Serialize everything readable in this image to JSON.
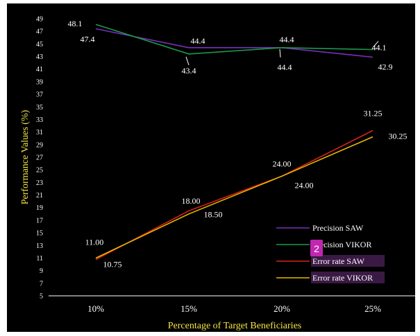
{
  "chart_data": {
    "type": "line",
    "xlabel": "Percentage of Target Beneficiaries",
    "ylabel": "Performance Values (%)",
    "categories": [
      "10%",
      "15%",
      "20%",
      "25%"
    ],
    "ylim": [
      5,
      49
    ],
    "yticks": [
      5,
      7,
      9,
      11,
      13,
      15,
      17,
      19,
      21,
      23,
      25,
      27,
      29,
      31,
      33,
      35,
      37,
      39,
      41,
      43,
      45,
      47,
      49
    ],
    "grid": false,
    "legend_position": "bottom-right",
    "series": [
      {
        "name": "Precision SAW",
        "color": "#7b2fbe",
        "values": [
          47.4,
          44.4,
          44.4,
          42.9
        ],
        "labels": [
          "47.4",
          "44.4",
          "44.4",
          "42.9"
        ]
      },
      {
        "name": "Precision VIKOR",
        "color": "#1a9a4a",
        "values": [
          48.1,
          43.4,
          44.4,
          44.1
        ],
        "labels": [
          "48.1",
          "43.4",
          "44.4",
          "44.1"
        ]
      },
      {
        "name": "Error rate SAW",
        "color": "#e0201a",
        "values": [
          10.75,
          18.5,
          24.0,
          31.25
        ],
        "labels": [
          "10.75",
          "18.50",
          "24.00",
          "31.25"
        ]
      },
      {
        "name": "Error rate VIKOR",
        "color": "#e6b800",
        "values": [
          11.0,
          18.0,
          24.0,
          30.25
        ],
        "labels": [
          "11.00",
          "18.00",
          "24.00",
          "30.25"
        ]
      }
    ]
  },
  "overlay": {
    "badge_label": "2",
    "badge_color": "#c026b0"
  }
}
